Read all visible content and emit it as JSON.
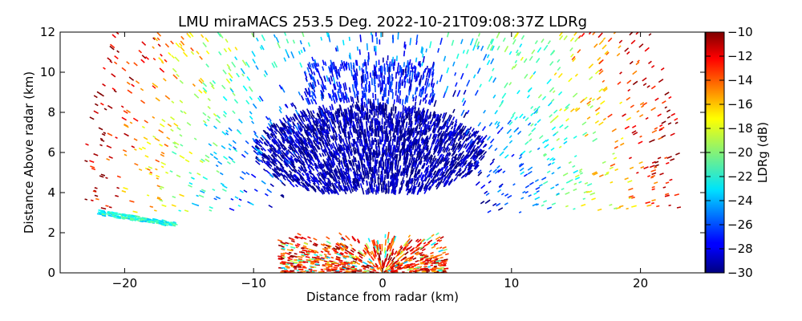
{
  "chart_data": {
    "type": "heatmap",
    "title": "LMU miraMACS 253.5 Deg. 2022-10-21T09:08:37Z  LDRg",
    "xlabel": "Distance from radar (km)",
    "ylabel": "Distance Above radar  (km)",
    "xlim": [
      -25,
      25
    ],
    "ylim": [
      0,
      12
    ],
    "xticks": [
      -20,
      -10,
      0,
      10,
      20
    ],
    "xtick_labels": [
      "−20",
      "−10",
      "0",
      "10",
      "20"
    ],
    "yticks": [
      0,
      2,
      4,
      6,
      8,
      10,
      12
    ],
    "ytick_labels": [
      "0",
      "2",
      "4",
      "6",
      "8",
      "10",
      "12"
    ],
    "colorbar": {
      "label": "LDRg (dB)",
      "range": [
        -30,
        -10
      ],
      "colormap": "jet",
      "ticks": [
        -30,
        -28,
        -26,
        -24,
        -22,
        -20,
        -18,
        -16,
        -14,
        -12,
        -10
      ],
      "tick_labels": [
        "−30",
        "−28",
        "−26",
        "−24",
        "−22",
        "−20",
        "−18",
        "−16",
        "−14",
        "−12",
        "−10"
      ]
    },
    "scan": "RHI scan, 253.5 deg azimuth",
    "features": [
      {
        "name": "cloud layer",
        "x_range": [
          -10,
          8
        ],
        "y_range": [
          4,
          8.5
        ],
        "ldr_db": -29
      },
      {
        "name": "upper cloud edge",
        "x_range": [
          -6,
          4
        ],
        "y_range": [
          8.5,
          10.5
        ],
        "ldr_db": -27
      },
      {
        "name": "outer sparse echoes",
        "x_range": [
          -23,
          23
        ],
        "y_range": [
          3,
          12
        ],
        "ldr_db": -20
      },
      {
        "name": "near-ground clutter",
        "x_range": [
          -8,
          5
        ],
        "y_range": [
          0,
          2
        ],
        "ldr_db": -10
      },
      {
        "name": "tilted band",
        "x_range": [
          -22,
          -16
        ],
        "y_range": [
          2.5,
          3
        ],
        "ldr_db": -23
      }
    ]
  }
}
